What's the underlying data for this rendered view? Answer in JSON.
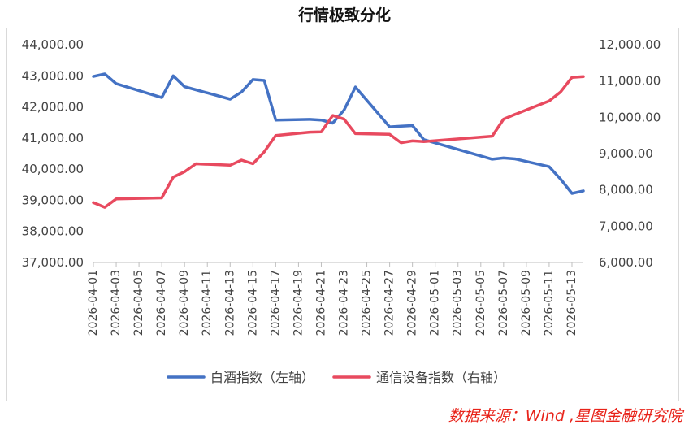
{
  "chart_data": {
    "type": "line",
    "title": "行情极致分化",
    "x": [
      "2026-04-01",
      "2026-04-02",
      "2026-04-03",
      "2026-04-07",
      "2026-04-08",
      "2026-04-09",
      "2026-04-10",
      "2026-04-13",
      "2026-04-14",
      "2026-04-15",
      "2026-04-16",
      "2026-04-17",
      "2026-04-20",
      "2026-04-21",
      "2026-04-22",
      "2026-04-23",
      "2026-04-24",
      "2026-04-27",
      "2026-04-28",
      "2026-04-29",
      "2026-04-30",
      "2026-05-06",
      "2026-05-07",
      "2026-05-08",
      "2026-05-11",
      "2026-05-12",
      "2026-05-13",
      "2026-05-14"
    ],
    "x_tick_labels": [
      "2026-04-01",
      "2026-04-03",
      "2026-04-05",
      "2026-04-07",
      "2026-04-09",
      "2026-04-11",
      "2026-04-13",
      "2026-04-15",
      "2026-04-17",
      "2026-04-19",
      "2026-04-21",
      "2026-04-23",
      "2026-04-25",
      "2026-04-27",
      "2026-04-29",
      "2026-05-01",
      "2026-05-03",
      "2026-05-05",
      "2026-05-07",
      "2026-05-09",
      "2026-05-11",
      "2026-05-13"
    ],
    "x_range": [
      "2026-04-01",
      "2026-05-14"
    ],
    "y_left": {
      "range": [
        37000,
        44000
      ],
      "tick_labels": [
        "37,000.00",
        "38,000.00",
        "39,000.00",
        "40,000.00",
        "41,000.00",
        "42,000.00",
        "43,000.00",
        "44,000.00"
      ]
    },
    "y_right": {
      "range": [
        6000,
        12000
      ],
      "tick_labels": [
        "6,000.00",
        "7,000.00",
        "8,000.00",
        "9,000.00",
        "10,000.00",
        "11,000.00",
        "12,000.00"
      ]
    },
    "grid": false,
    "legend_position": "bottom",
    "series": [
      {
        "name": "白酒指数（左轴）",
        "axis": "left",
        "color": "#4472c4",
        "values": [
          42980,
          43060,
          42750,
          42300,
          43000,
          42650,
          42550,
          42250,
          42480,
          42880,
          42850,
          41580,
          41600,
          41580,
          41480,
          41900,
          42640,
          41360,
          41380,
          41400,
          40950,
          40320,
          40360,
          40330,
          40080,
          39680,
          39220,
          39300
        ]
      },
      {
        "name": "通信设备指数（右轴）",
        "axis": "right",
        "color": "#e84a5f",
        "values": [
          7650,
          7520,
          7750,
          7780,
          8350,
          8500,
          8720,
          8680,
          8820,
          8720,
          9050,
          9500,
          9590,
          9600,
          10050,
          9950,
          9550,
          9530,
          9300,
          9350,
          9330,
          9480,
          9950,
          10080,
          10450,
          10700,
          11100,
          11120
        ]
      }
    ]
  },
  "source": "数据来源：Wind ,星图金融研究院"
}
